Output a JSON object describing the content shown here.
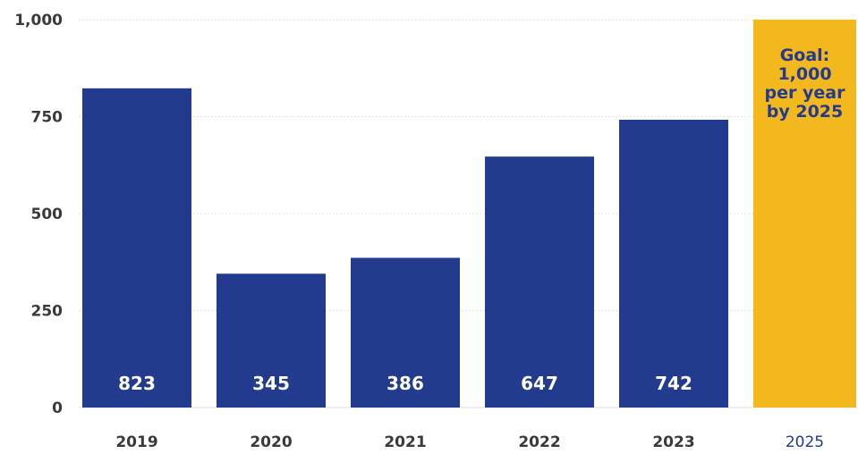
{
  "chart_data": {
    "type": "bar",
    "categories": [
      "2019",
      "2020",
      "2021",
      "2022",
      "2023",
      "2025"
    ],
    "values": [
      823,
      345,
      386,
      647,
      742,
      1000
    ],
    "value_labels": [
      "823",
      "345",
      "386",
      "647",
      "742",
      ""
    ],
    "goal": {
      "category": "2025",
      "value": 1000,
      "label_lines": [
        "Goal:",
        "1,000",
        "per year",
        "by 2025"
      ]
    },
    "y_ticks": [
      0,
      250,
      500,
      750,
      1000
    ],
    "y_tick_labels": [
      "0",
      "250",
      "500",
      "750",
      "1,000"
    ],
    "ylim": [
      0,
      1000
    ],
    "grid": true,
    "colors": {
      "bar": "#233b8e",
      "goal_bar": "#f2b81d",
      "goal_text": "#233b8e",
      "goal_tick": "#233b8e",
      "tick": "#3a3a3a",
      "grid": "#e6e6e6",
      "value_text": "#ffffff"
    }
  }
}
